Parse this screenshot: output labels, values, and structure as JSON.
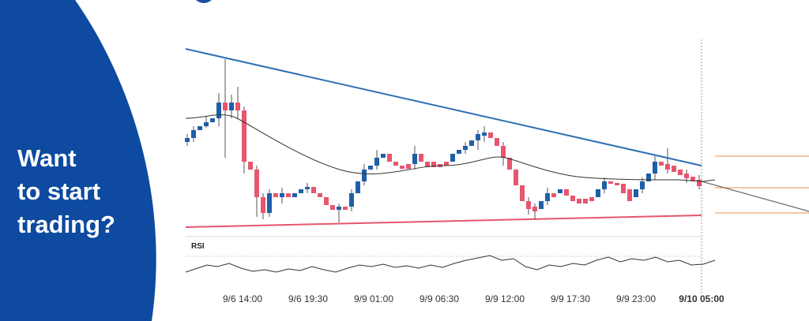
{
  "promo": {
    "headline": [
      "Want",
      "to start",
      "trading?"
    ]
  },
  "chart": {
    "indicator_label": "RSI",
    "x_labels": [
      "9/6 14:00",
      "9/6 19:30",
      "9/9 01:00",
      "9/9 06:30",
      "9/9 12:00",
      "9/9 17:30",
      "9/9 23:00",
      "9/10 05:00"
    ]
  }
}
